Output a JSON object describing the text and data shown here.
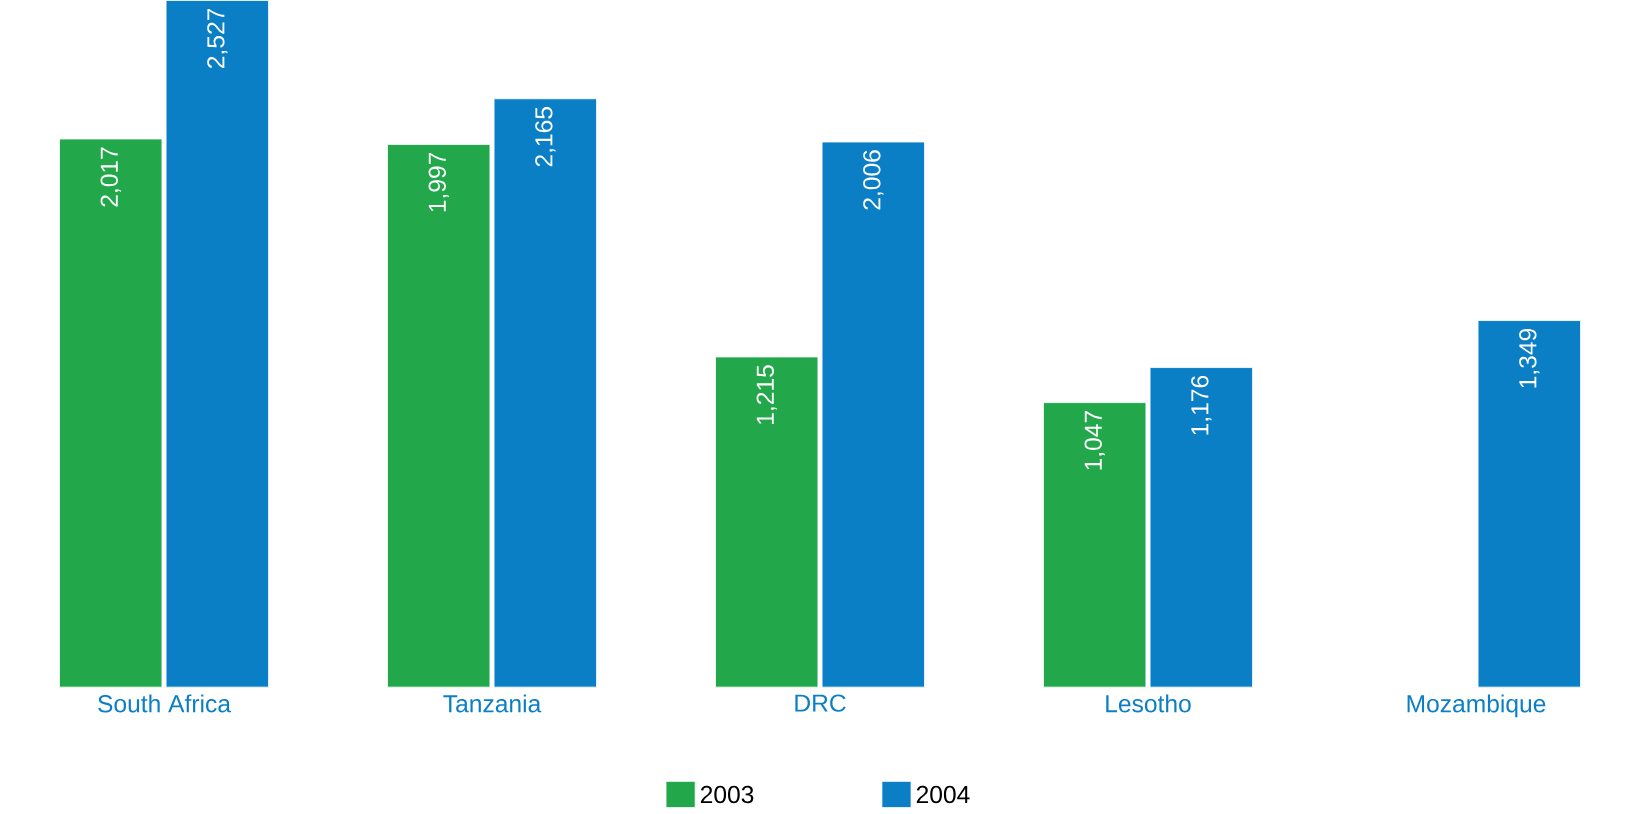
{
  "chart_data": {
    "type": "bar",
    "categories": [
      "South Africa",
      "Tanzania",
      "DRC",
      "Lesotho",
      "Mozambique"
    ],
    "series": [
      {
        "name": "2003",
        "color": "#22a84a",
        "values": [
          2017,
          1997,
          1215,
          1047,
          null
        ],
        "value_labels": [
          "2,017",
          "1,997",
          "1,215",
          "1,047",
          null
        ]
      },
      {
        "name": "2004",
        "color": "#0b7fc6",
        "values": [
          2527,
          2165,
          2006,
          1176,
          1349
        ],
        "value_labels": [
          "2,527",
          "2,165",
          "2,006",
          "1,176",
          "1,349"
        ]
      }
    ],
    "legend": "bottom"
  }
}
